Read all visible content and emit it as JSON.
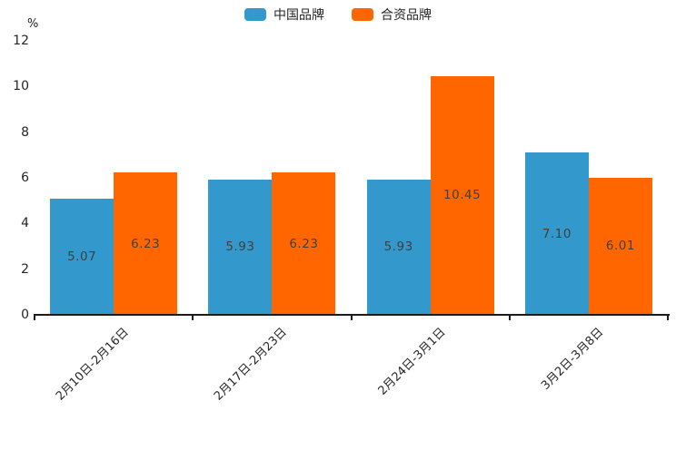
{
  "chart_data": {
    "type": "bar",
    "title": "",
    "ylabel": "%",
    "xlabel": "",
    "ylim": [
      0,
      12
    ],
    "yticks": [
      0,
      2,
      4,
      6,
      8,
      10,
      12
    ],
    "grid": false,
    "legend_position": "top-center",
    "categories": [
      "2月10日-2月16日",
      "2月17日-2月23日",
      "2月24日-3月1日",
      "3月2日-3月8日"
    ],
    "series": [
      {
        "name": "中国品牌",
        "color": "#3398CC",
        "values": [
          5.07,
          5.93,
          5.93,
          7.1
        ],
        "labels": [
          "5.07",
          "5.93",
          "5.93",
          "7.10"
        ]
      },
      {
        "name": "合资品牌",
        "color": "#FF6600",
        "values": [
          6.23,
          6.23,
          10.45,
          6.01
        ],
        "labels": [
          "6.23",
          "6.23",
          "10.45",
          "6.01"
        ]
      }
    ]
  },
  "colors": {
    "axis": "#1c1c1c",
    "tick_text": "#262626",
    "bar_value_text": "#404040",
    "background": "#ffffff"
  }
}
